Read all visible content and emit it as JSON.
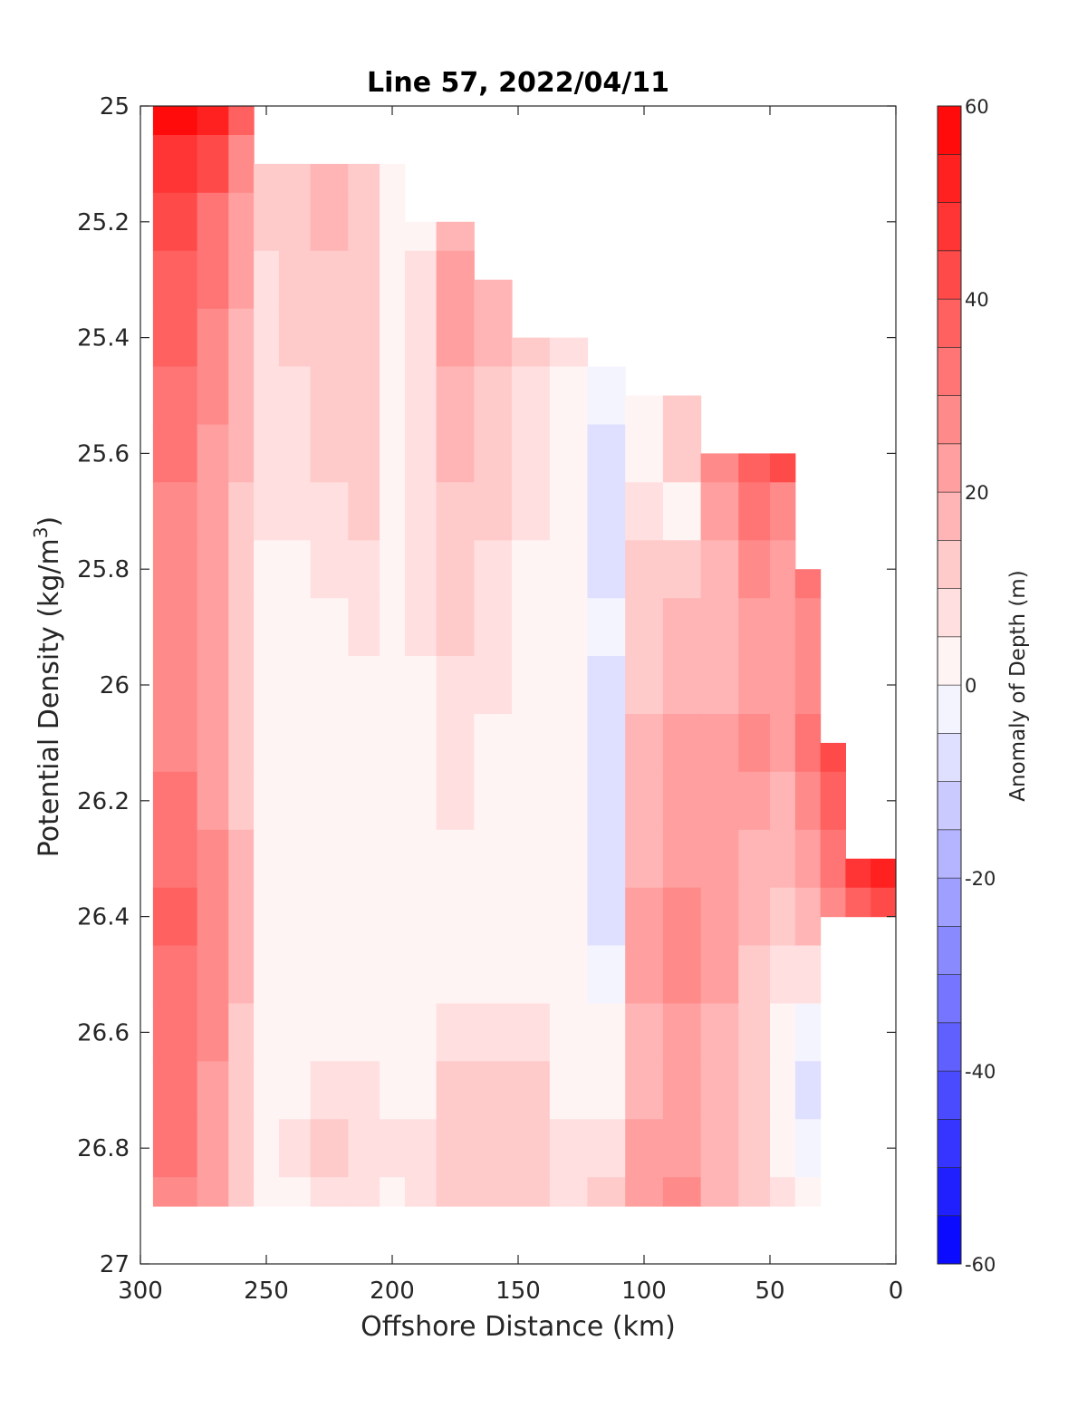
{
  "chart_data": {
    "type": "heatmap",
    "title": "Line 57, 2022/04/11",
    "xlabel": "Offshore Distance (km)",
    "ylabel_main": "Potential Density (kg/m",
    "ylabel_sup": "3",
    "ylabel_close": ")",
    "xlim": [
      300,
      0
    ],
    "ylim": [
      27,
      25
    ],
    "x_reversed": true,
    "y_reversed": true,
    "xticks": [
      300,
      250,
      200,
      150,
      100,
      50,
      0
    ],
    "xtick_labels": [
      "300",
      "250",
      "200",
      "150",
      "100",
      "50",
      "0"
    ],
    "yticks": [
      25,
      25.2,
      25.4,
      25.6,
      25.8,
      26,
      26.2,
      26.4,
      26.6,
      26.8,
      27
    ],
    "ytick_labels": [
      "25",
      "25.2",
      "25.4",
      "25.6",
      "25.8",
      "26",
      "26.2",
      "26.4",
      "26.6",
      "26.8",
      "27"
    ],
    "colorbar": {
      "label": "Anomaly of Depth (m)",
      "range": [
        -60,
        60
      ],
      "levels_step": 5,
      "ticks": [
        60,
        40,
        20,
        0,
        -20,
        -40,
        -60
      ],
      "tick_labels": [
        "60",
        "40",
        "20",
        "0",
        "-20",
        "-40",
        "-60"
      ],
      "colormap": "blue-white-red"
    },
    "x_columns_km": [
      285,
      270,
      260,
      250,
      240,
      225,
      210,
      200,
      190,
      175,
      160,
      145,
      130,
      115,
      100,
      85,
      70,
      55,
      45,
      35,
      25,
      15,
      5
    ],
    "column_density_range": [
      [
        25.0,
        26.9
      ],
      [
        25.0,
        26.9
      ],
      [
        25.0,
        26.9
      ],
      [
        25.1,
        26.9
      ],
      [
        25.1,
        26.9
      ],
      [
        25.1,
        26.9
      ],
      [
        25.1,
        26.9
      ],
      [
        25.1,
        26.9
      ],
      [
        25.2,
        26.9
      ],
      [
        25.2,
        26.9
      ],
      [
        25.3,
        26.9
      ],
      [
        25.4,
        26.9
      ],
      [
        25.4,
        26.9
      ],
      [
        25.45,
        26.9
      ],
      [
        25.5,
        26.9
      ],
      [
        25.5,
        26.9
      ],
      [
        25.6,
        26.9
      ],
      [
        25.6,
        26.9
      ],
      [
        25.6,
        26.9
      ],
      [
        25.8,
        26.9
      ],
      [
        26.1,
        26.4
      ],
      [
        26.3,
        26.4
      ],
      [
        26.3,
        26.4
      ]
    ],
    "y_rows_density": [
      25.0,
      25.1,
      25.2,
      25.3,
      25.4,
      25.5,
      25.6,
      25.7,
      25.8,
      25.9,
      26.0,
      26.1,
      26.2,
      26.3,
      26.4,
      26.5,
      26.6,
      26.7,
      26.8,
      26.9
    ],
    "anomaly_m": [
      [
        60,
        52,
        35,
        null,
        null,
        null,
        null,
        null,
        null,
        null,
        null,
        null,
        null,
        null,
        null,
        null,
        null,
        null,
        null,
        null,
        null,
        null,
        null
      ],
      [
        48,
        40,
        28,
        12,
        14,
        17,
        12,
        3,
        null,
        null,
        null,
        null,
        null,
        null,
        null,
        null,
        null,
        null,
        null,
        null,
        null,
        null,
        null
      ],
      [
        40,
        32,
        22,
        10,
        14,
        18,
        12,
        3,
        3,
        18,
        null,
        null,
        null,
        null,
        null,
        null,
        null,
        null,
        null,
        null,
        null,
        null,
        null
      ],
      [
        36,
        30,
        20,
        8,
        12,
        14,
        10,
        2,
        5,
        22,
        15,
        null,
        null,
        null,
        null,
        null,
        null,
        null,
        null,
        null,
        null,
        null,
        null
      ],
      [
        35,
        28,
        18,
        8,
        10,
        12,
        10,
        2,
        8,
        22,
        18,
        12,
        5,
        null,
        null,
        null,
        null,
        null,
        null,
        null,
        null,
        null,
        null
      ],
      [
        32,
        26,
        16,
        7,
        9,
        12,
        14,
        2,
        8,
        18,
        14,
        8,
        2,
        -2,
        3,
        12,
        null,
        null,
        null,
        null,
        null,
        null,
        null
      ],
      [
        30,
        24,
        15,
        6,
        8,
        10,
        12,
        2,
        7,
        16,
        12,
        6,
        0,
        -6,
        2,
        10,
        25,
        35,
        40,
        null,
        null,
        null,
        null
      ],
      [
        28,
        22,
        14,
        5,
        7,
        9,
        10,
        2,
        6,
        14,
        10,
        5,
        0,
        -7,
        6,
        2,
        20,
        30,
        25,
        null,
        null,
        null,
        null
      ],
      [
        27,
        21,
        13,
        3,
        4,
        6,
        8,
        4,
        6,
        12,
        8,
        3,
        0,
        -6,
        12,
        14,
        18,
        25,
        22,
        30,
        null,
        null,
        null
      ],
      [
        26,
        20,
        12,
        2,
        2,
        3,
        5,
        2,
        5,
        10,
        6,
        2,
        0,
        -5,
        12,
        16,
        15,
        22,
        20,
        28,
        null,
        null,
        null
      ],
      [
        26,
        20,
        12,
        2,
        1,
        2,
        2,
        0,
        4,
        8,
        5,
        1,
        0,
        -6,
        14,
        18,
        18,
        24,
        22,
        28,
        null,
        null,
        null
      ],
      [
        27,
        21,
        13,
        2,
        1,
        1,
        1,
        0,
        3,
        7,
        4,
        1,
        0,
        -8,
        15,
        20,
        20,
        26,
        24,
        30,
        40,
        null,
        null
      ],
      [
        30,
        24,
        14,
        3,
        2,
        1,
        1,
        1,
        3,
        5,
        3,
        1,
        0,
        -6,
        16,
        22,
        22,
        22,
        18,
        26,
        38,
        null,
        null
      ],
      [
        32,
        26,
        15,
        3,
        2,
        1,
        1,
        2,
        2,
        4,
        2,
        1,
        0,
        -6,
        18,
        24,
        22,
        18,
        16,
        22,
        32,
        45,
        50
      ],
      [
        36,
        28,
        16,
        4,
        1,
        1,
        1,
        2,
        1,
        2,
        2,
        1,
        0,
        -6,
        20,
        26,
        22,
        16,
        12,
        18,
        28,
        38,
        42
      ],
      [
        34,
        26,
        15,
        4,
        1,
        1,
        1,
        3,
        1,
        2,
        1,
        1,
        0,
        -4,
        20,
        26,
        20,
        12,
        6,
        8,
        null,
        null,
        null
      ],
      [
        34,
        26,
        14,
        4,
        2,
        2,
        2,
        3,
        1,
        8,
        8,
        6,
        2,
        0,
        18,
        24,
        18,
        12,
        2,
        -4,
        null,
        null,
        null
      ],
      [
        32,
        24,
        14,
        4,
        4,
        8,
        6,
        4,
        4,
        10,
        12,
        10,
        4,
        2,
        18,
        22,
        16,
        10,
        0,
        -10,
        null,
        null,
        null
      ],
      [
        30,
        22,
        13,
        3,
        5,
        10,
        8,
        5,
        6,
        12,
        14,
        12,
        6,
        6,
        20,
        24,
        16,
        10,
        2,
        -2,
        null,
        null,
        null
      ],
      [
        28,
        20,
        12,
        3,
        4,
        8,
        6,
        4,
        5,
        12,
        14,
        12,
        8,
        10,
        24,
        26,
        18,
        10,
        6,
        4,
        null,
        null,
        null
      ]
    ]
  }
}
